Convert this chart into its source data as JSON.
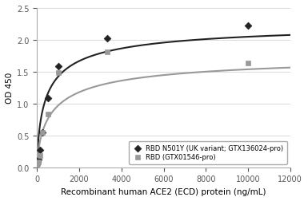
{
  "series1_name": "RBD N501Y (UK variant; GTX136024-pro)",
  "series2_name": "RBD (GTX01546-pro)",
  "series1_x": [
    0,
    31.25,
    62.5,
    125,
    250,
    500,
    1000,
    3333,
    10000
  ],
  "series1_y": [
    0.05,
    0.08,
    0.12,
    0.27,
    0.55,
    1.08,
    1.58,
    2.03,
    2.23
  ],
  "series2_x": [
    0,
    31.25,
    62.5,
    125,
    250,
    500,
    1000,
    3333,
    10000
  ],
  "series2_y": [
    0.03,
    0.06,
    0.09,
    0.18,
    0.55,
    0.84,
    1.48,
    1.81,
    1.63
  ],
  "series1_color": "#222222",
  "series2_color": "#999999",
  "series1_marker": "D",
  "series2_marker": "s",
  "xlabel": "Recombinant human ACE2 (ECD) protein (ng/mL)",
  "ylabel": "OD 450",
  "xlim": [
    0,
    12000
  ],
  "ylim": [
    0,
    2.5
  ],
  "xticks": [
    0,
    2000,
    4000,
    6000,
    8000,
    10000,
    12000
  ],
  "yticks": [
    0,
    0.5,
    1.0,
    1.5,
    2.0,
    2.5
  ],
  "legend_loc": "lower right",
  "figsize": [
    3.85,
    2.53
  ],
  "dpi": 100
}
